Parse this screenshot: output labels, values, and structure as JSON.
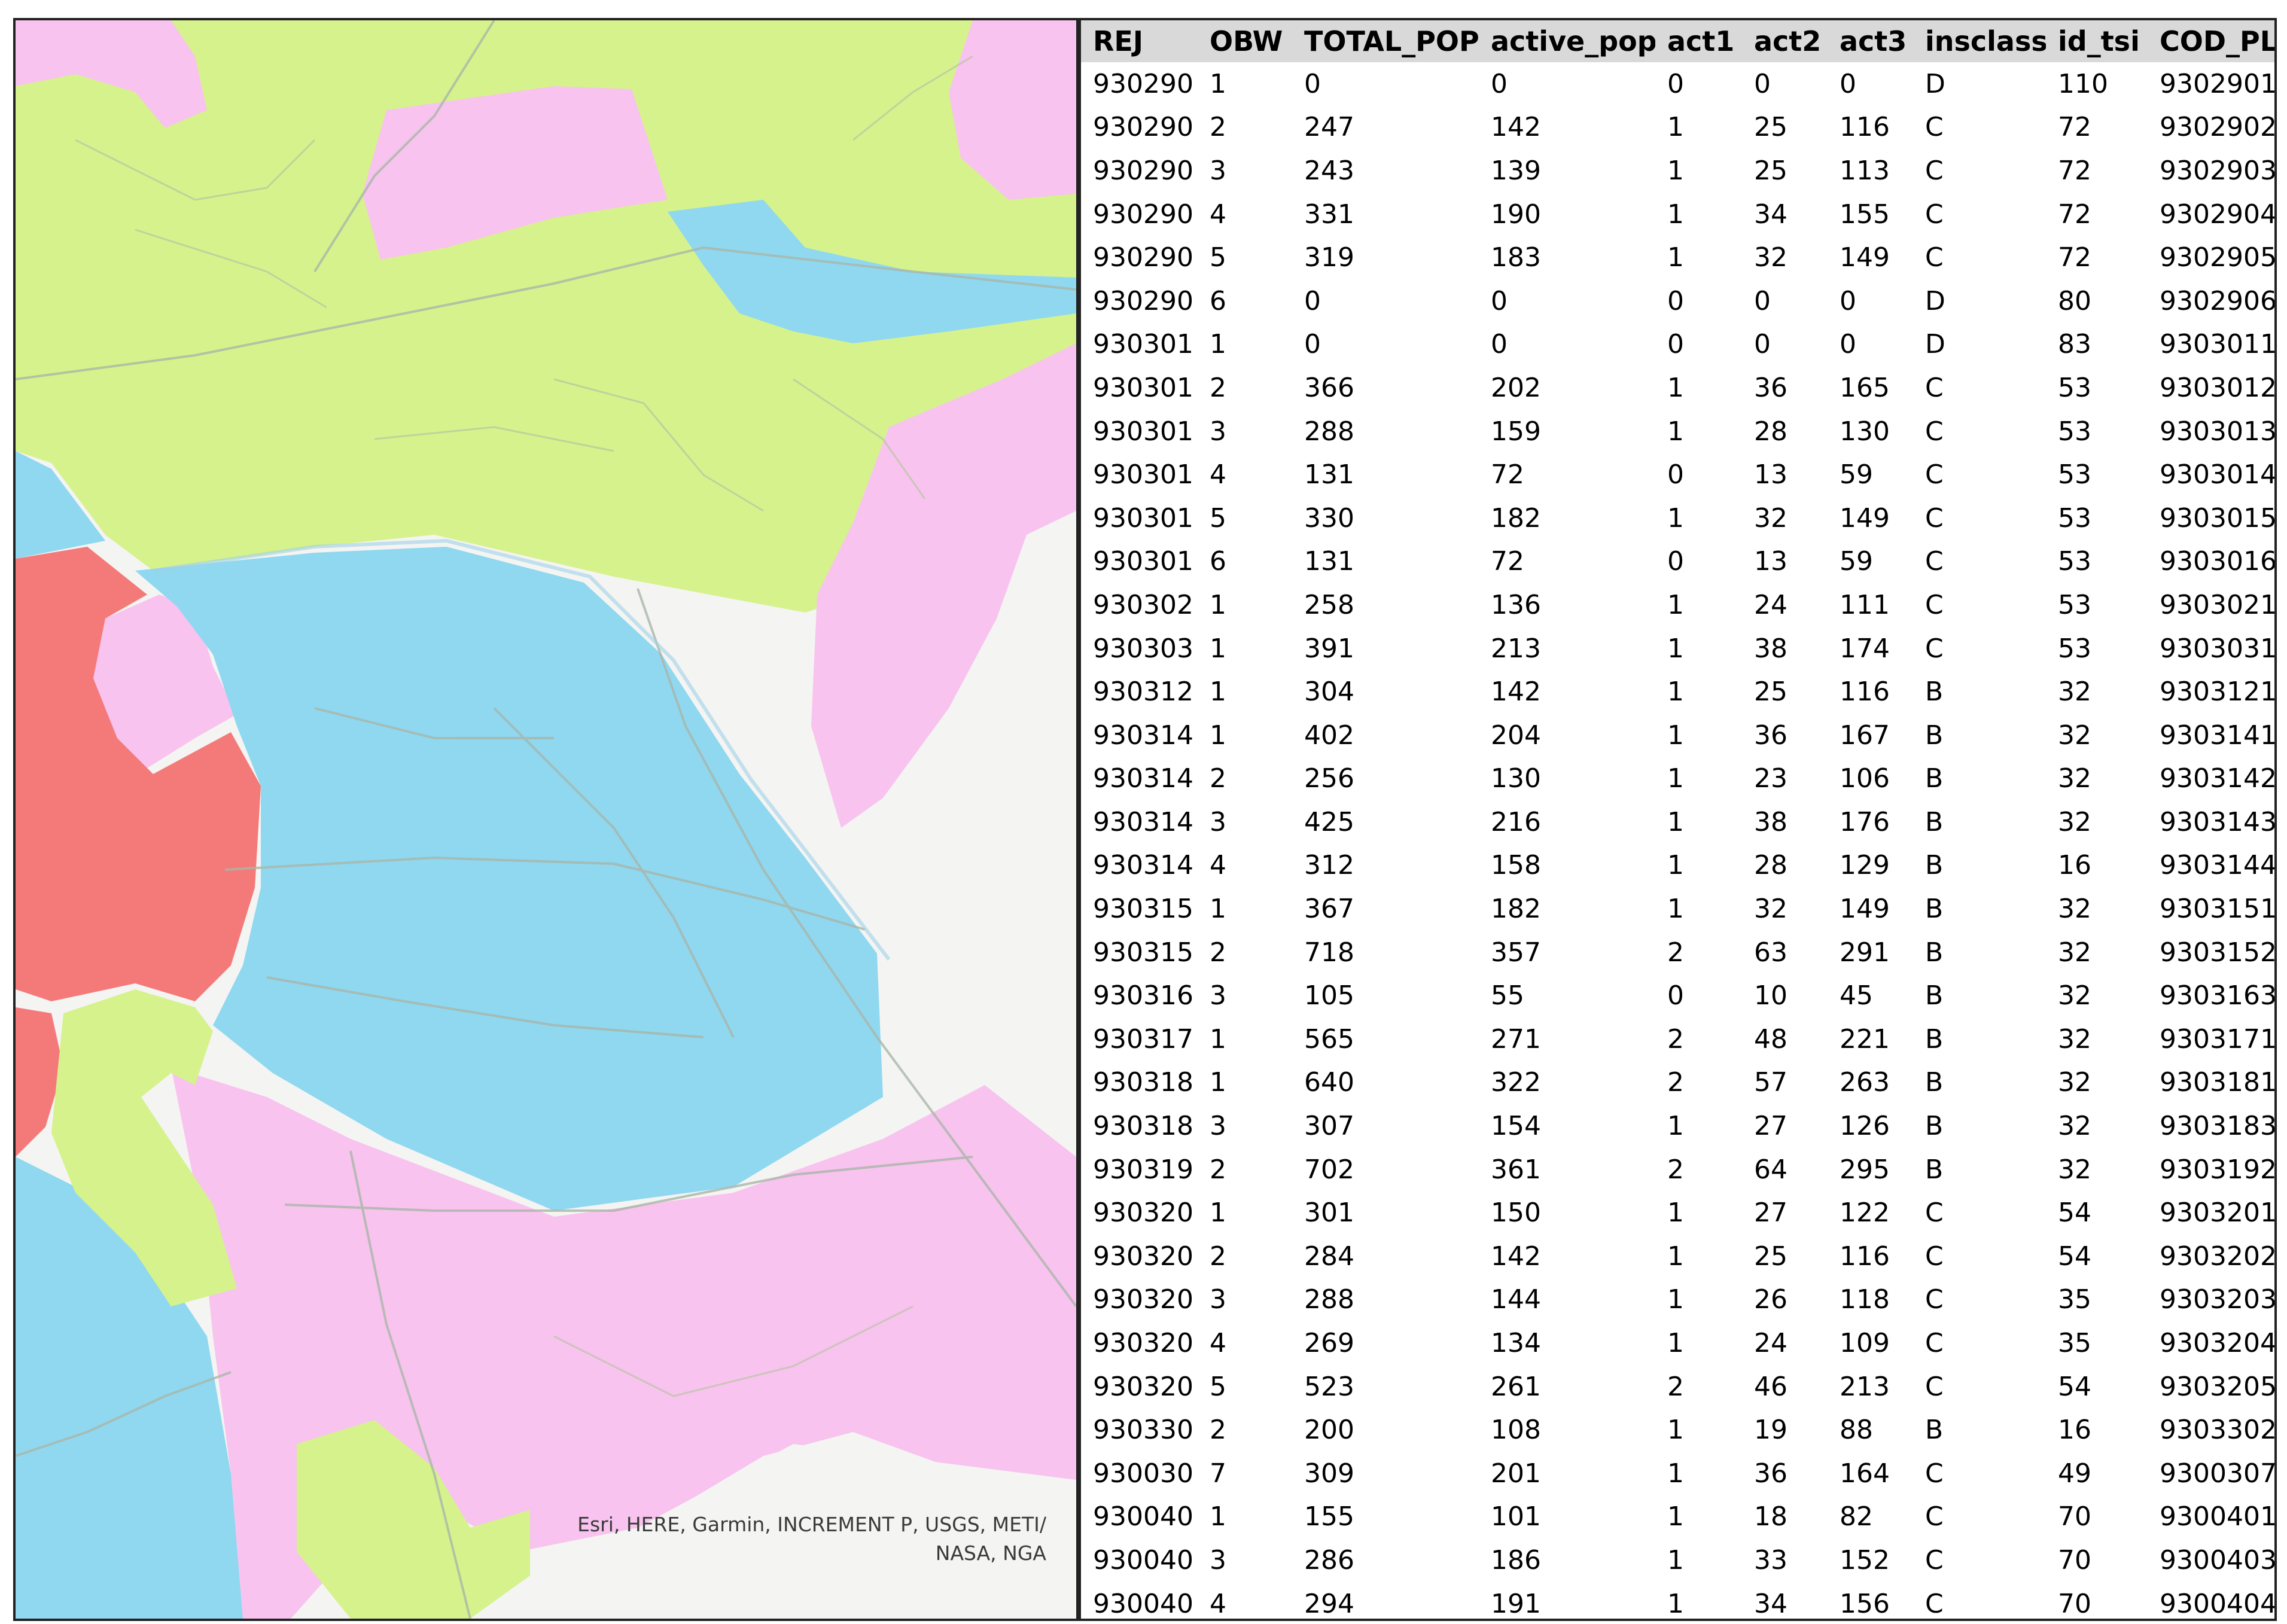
{
  "map": {
    "attribution_line1": "Esri, HERE, Garmin, INCREMENT P, USGS, METI/",
    "attribution_line2": "NASA, NGA",
    "colors": {
      "class_b_blue": "#8fd8f0",
      "class_c_green": "#d6f28c",
      "class_d_pink": "#f8c3ee",
      "class_a_red": "#f47a7a",
      "background": "#f4f4f2",
      "road": "#a9b6a9"
    }
  },
  "table": {
    "columns": [
      "REJ",
      "OBW",
      "TOTAL_POP",
      "active_pop",
      "act1",
      "act2",
      "act3",
      "insclass",
      "id_tsi",
      "COD_PL"
    ],
    "rows": [
      [
        "930290",
        "1",
        "0",
        "0",
        "0",
        "0",
        "0",
        "D",
        "110",
        "9302901"
      ],
      [
        "930290",
        "2",
        "247",
        "142",
        "1",
        "25",
        "116",
        "C",
        "72",
        "9302902"
      ],
      [
        "930290",
        "3",
        "243",
        "139",
        "1",
        "25",
        "113",
        "C",
        "72",
        "9302903"
      ],
      [
        "930290",
        "4",
        "331",
        "190",
        "1",
        "34",
        "155",
        "C",
        "72",
        "9302904"
      ],
      [
        "930290",
        "5",
        "319",
        "183",
        "1",
        "32",
        "149",
        "C",
        "72",
        "9302905"
      ],
      [
        "930290",
        "6",
        "0",
        "0",
        "0",
        "0",
        "0",
        "D",
        "80",
        "9302906"
      ],
      [
        "930301",
        "1",
        "0",
        "0",
        "0",
        "0",
        "0",
        "D",
        "83",
        "9303011"
      ],
      [
        "930301",
        "2",
        "366",
        "202",
        "1",
        "36",
        "165",
        "C",
        "53",
        "9303012"
      ],
      [
        "930301",
        "3",
        "288",
        "159",
        "1",
        "28",
        "130",
        "C",
        "53",
        "9303013"
      ],
      [
        "930301",
        "4",
        "131",
        "72",
        "0",
        "13",
        "59",
        "C",
        "53",
        "9303014"
      ],
      [
        "930301",
        "5",
        "330",
        "182",
        "1",
        "32",
        "149",
        "C",
        "53",
        "9303015"
      ],
      [
        "930301",
        "6",
        "131",
        "72",
        "0",
        "13",
        "59",
        "C",
        "53",
        "9303016"
      ],
      [
        "930302",
        "1",
        "258",
        "136",
        "1",
        "24",
        "111",
        "C",
        "53",
        "9303021"
      ],
      [
        "930303",
        "1",
        "391",
        "213",
        "1",
        "38",
        "174",
        "C",
        "53",
        "9303031"
      ],
      [
        "930312",
        "1",
        "304",
        "142",
        "1",
        "25",
        "116",
        "B",
        "32",
        "9303121"
      ],
      [
        "930314",
        "1",
        "402",
        "204",
        "1",
        "36",
        "167",
        "B",
        "32",
        "9303141"
      ],
      [
        "930314",
        "2",
        "256",
        "130",
        "1",
        "23",
        "106",
        "B",
        "32",
        "9303142"
      ],
      [
        "930314",
        "3",
        "425",
        "216",
        "1",
        "38",
        "176",
        "B",
        "32",
        "9303143"
      ],
      [
        "930314",
        "4",
        "312",
        "158",
        "1",
        "28",
        "129",
        "B",
        "16",
        "9303144"
      ],
      [
        "930315",
        "1",
        "367",
        "182",
        "1",
        "32",
        "149",
        "B",
        "32",
        "9303151"
      ],
      [
        "930315",
        "2",
        "718",
        "357",
        "2",
        "63",
        "291",
        "B",
        "32",
        "9303152"
      ],
      [
        "930316",
        "3",
        "105",
        "55",
        "0",
        "10",
        "45",
        "B",
        "32",
        "9303163"
      ],
      [
        "930317",
        "1",
        "565",
        "271",
        "2",
        "48",
        "221",
        "B",
        "32",
        "9303171"
      ],
      [
        "930318",
        "1",
        "640",
        "322",
        "2",
        "57",
        "263",
        "B",
        "32",
        "9303181"
      ],
      [
        "930318",
        "3",
        "307",
        "154",
        "1",
        "27",
        "126",
        "B",
        "32",
        "9303183"
      ],
      [
        "930319",
        "2",
        "702",
        "361",
        "2",
        "64",
        "295",
        "B",
        "32",
        "9303192"
      ],
      [
        "930320",
        "1",
        "301",
        "150",
        "1",
        "27",
        "122",
        "C",
        "54",
        "9303201"
      ],
      [
        "930320",
        "2",
        "284",
        "142",
        "1",
        "25",
        "116",
        "C",
        "54",
        "9303202"
      ],
      [
        "930320",
        "3",
        "288",
        "144",
        "1",
        "26",
        "118",
        "C",
        "35",
        "9303203"
      ],
      [
        "930320",
        "4",
        "269",
        "134",
        "1",
        "24",
        "109",
        "C",
        "35",
        "9303204"
      ],
      [
        "930320",
        "5",
        "523",
        "261",
        "2",
        "46",
        "213",
        "C",
        "54",
        "9303205"
      ],
      [
        "930330",
        "2",
        "200",
        "108",
        "1",
        "19",
        "88",
        "B",
        "16",
        "9303302"
      ],
      [
        "930030",
        "7",
        "309",
        "201",
        "1",
        "36",
        "164",
        "C",
        "49",
        "9300307"
      ],
      [
        "930040",
        "1",
        "155",
        "101",
        "1",
        "18",
        "82",
        "C",
        "70",
        "9300401"
      ],
      [
        "930040",
        "3",
        "286",
        "186",
        "1",
        "33",
        "152",
        "C",
        "70",
        "9300403"
      ],
      [
        "930040",
        "4",
        "294",
        "191",
        "1",
        "34",
        "156",
        "C",
        "70",
        "9300404"
      ]
    ]
  }
}
